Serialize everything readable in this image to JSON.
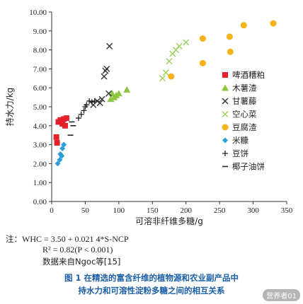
{
  "chart_data": {
    "type": "scatter",
    "xlabel": "可溶非纤维多糖/g",
    "ylabel": "持水力/kg",
    "xlim": [
      0,
      350
    ],
    "ylim": [
      0,
      10
    ],
    "x_ticks": [
      "0",
      "50",
      "100",
      "150",
      "200",
      "250",
      "300",
      "350"
    ],
    "y_ticks": [
      "0.00",
      "1.00",
      "2.00",
      "3.00",
      "4.00",
      "5.00",
      "6.00",
      "7.00",
      "8.00",
      "9.00",
      "10.00"
    ],
    "legend_position": "right",
    "series": [
      {
        "name": "啤酒糟粕",
        "marker": "square",
        "color": "#e3212b",
        "points": [
          [
            8,
            3.1
          ],
          [
            7,
            3.4
          ],
          [
            10,
            4.2
          ],
          [
            13,
            4.3
          ],
          [
            16,
            4.1
          ],
          [
            18,
            4.35
          ],
          [
            20,
            4.0
          ],
          [
            22,
            4.4
          ]
        ]
      },
      {
        "name": "木薯渣",
        "marker": "triangle",
        "color": "#8dc63f",
        "points": [
          [
            88,
            5.4
          ],
          [
            90,
            5.7
          ],
          [
            93,
            5.5
          ],
          [
            96,
            5.6
          ],
          [
            100,
            5.7
          ],
          [
            112,
            5.9
          ]
        ]
      },
      {
        "name": "甘薯藤",
        "marker": "x",
        "color": "#333333",
        "points": [
          [
            62,
            5.1
          ],
          [
            68,
            5.3
          ],
          [
            72,
            5.2
          ],
          [
            75,
            5.4
          ],
          [
            78,
            6.6
          ],
          [
            80,
            6.9
          ],
          [
            82,
            7.0
          ],
          [
            85,
            5.7
          ],
          [
            86,
            8.2
          ]
        ]
      },
      {
        "name": "空心菜",
        "marker": "x",
        "color": "#9ccf5a",
        "points": [
          [
            165,
            6.5
          ],
          [
            170,
            6.8
          ],
          [
            175,
            7.4
          ],
          [
            180,
            7.8
          ],
          [
            185,
            8.0
          ],
          [
            190,
            8.2
          ],
          [
            200,
            8.4
          ]
        ]
      },
      {
        "name": "豆腐渣",
        "marker": "circle",
        "color": "#f5b21b",
        "points": [
          [
            178,
            6.6
          ],
          [
            225,
            7.3
          ],
          [
            225,
            8.6
          ],
          [
            265,
            8.7
          ],
          [
            266,
            7.9
          ],
          [
            286,
            9.3
          ],
          [
            330,
            9.4
          ]
        ]
      },
      {
        "name": "米糠",
        "marker": "diamond",
        "color": "#2a9fd6",
        "points": [
          [
            9,
            2.0
          ],
          [
            12,
            2.2
          ],
          [
            13,
            2.5
          ],
          [
            15,
            2.4
          ],
          [
            16,
            2.8
          ],
          [
            18,
            3.0
          ]
        ]
      },
      {
        "name": "豆饼",
        "marker": "plus",
        "color": "#222222",
        "points": [
          [
            40,
            4.4
          ],
          [
            44,
            4.6
          ],
          [
            48,
            4.8
          ],
          [
            50,
            5.0
          ],
          [
            52,
            5.1
          ],
          [
            56,
            5.3
          ],
          [
            60,
            5.25
          ],
          [
            64,
            5.3
          ]
        ]
      },
      {
        "name": "椰子油饼",
        "marker": "dash",
        "color": "#222222",
        "points": [
          [
            28,
            3.5
          ],
          [
            30,
            4.2
          ],
          [
            32,
            4.0
          ]
        ]
      }
    ]
  },
  "note": {
    "prefix": "注：",
    "formula": "WHC = 3.50 + 0.021 4*S-NCP",
    "r2": "R² = 0.82(P < 0.001)",
    "source": "数据来自Ngoc等[15]"
  },
  "caption": {
    "line1": "图 1  在精选的富含纤维的植物源和农业副产品中",
    "line2": "持水力和可溶性淀粉多糖之间的相互关系"
  },
  "watermark": "营养者01"
}
